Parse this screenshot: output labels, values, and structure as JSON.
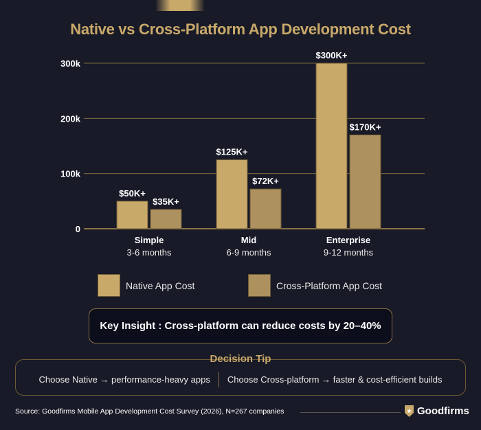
{
  "chart_data": {
    "type": "bar",
    "title": "Native vs Cross-Platform App Development Cost",
    "categories": [
      "Simple",
      "Mid",
      "Enterprise"
    ],
    "category_sublabels": [
      "3-6 months",
      "6-9 months",
      "9-12 months"
    ],
    "series": [
      {
        "name": "Native App Cost",
        "values": [
          50,
          125,
          300
        ],
        "labels": [
          "$50K+",
          "$125K+",
          "$300K+"
        ],
        "color": "#c9a96a"
      },
      {
        "name": "Cross-Platform App Cost",
        "values": [
          35,
          72,
          170
        ],
        "labels": [
          "$35K+",
          "$72K+",
          "$170K+"
        ],
        "color": "#ad925f"
      }
    ],
    "yticks": [
      0,
      100,
      200,
      300
    ],
    "ytick_labels": [
      "0",
      "100k",
      "200k",
      "300k"
    ],
    "ylim": [
      0,
      300
    ],
    "grid": true,
    "legend": "bottom"
  },
  "insight": "Key Insight : Cross-platform can reduce costs by 20–40%",
  "tip": {
    "title": "Decision Tip",
    "left": "Choose Native → performance-heavy apps",
    "right": "Choose Cross-platform → faster & cost-efficient builds"
  },
  "source": "Source: Goodfirms Mobile App Development Cost Survey (2026), N=267 companies",
  "brand": "Goodfirms"
}
